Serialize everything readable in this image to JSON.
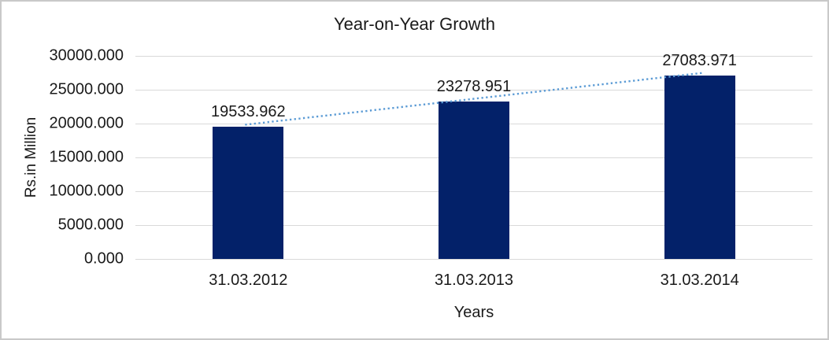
{
  "window": {
    "background": "#ffffff",
    "border_color": "#c9c9c9"
  },
  "chart_data": {
    "type": "bar",
    "title": "Year-on-Year Growth",
    "xlabel": "Years",
    "ylabel": "Rs.in Million",
    "categories": [
      "31.03.2012",
      "31.03.2013",
      "31.03.2014"
    ],
    "values": [
      19533.962,
      23278.951,
      27083.971
    ],
    "data_labels": [
      "19533.962",
      "23278.951",
      "27083.971"
    ],
    "y_ticks": [
      "30000.000",
      "25000.000",
      "20000.000",
      "15000.000",
      "10000.000",
      "5000.000",
      "0.000"
    ],
    "ylim": [
      0,
      30000
    ],
    "y_step": 5000,
    "grid": true,
    "legend": "none",
    "bar_color": "#032169",
    "gridline_color": "#d9d9d9",
    "text_color": "#1a1a1a",
    "trendline": {
      "type": "linear",
      "style": "dotted",
      "color": "#5b9bd5"
    }
  }
}
